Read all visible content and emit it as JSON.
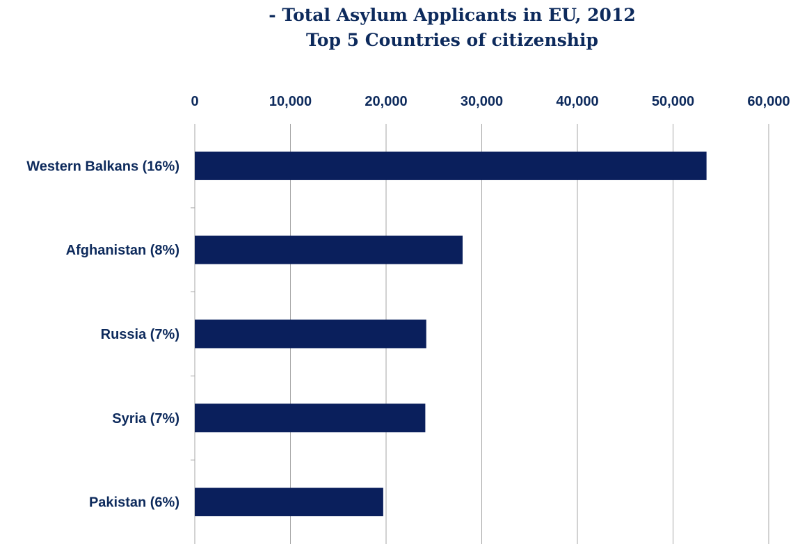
{
  "chart_data": {
    "type": "bar",
    "orientation": "horizontal",
    "title_lines": [
      "- Total Asylum Applicants in EU, 2012",
      "Top 5 Countries of citizenship"
    ],
    "categories": [
      "Western Balkans (16%)",
      "Afghanistan (8%)",
      "Russia (7%)",
      "Syria (7%)",
      "Pakistan (6%)"
    ],
    "values": [
      53500,
      28000,
      24200,
      24100,
      19700
    ],
    "xlim": [
      0,
      60000
    ],
    "xticks": [
      0,
      10000,
      20000,
      30000,
      40000,
      50000,
      60000
    ],
    "xtick_labels": [
      "0",
      "10,000",
      "20,000",
      "30,000",
      "40,000",
      "50,000",
      "60,000"
    ],
    "xaxis_position": "top",
    "grid": "vertical",
    "legend": "none",
    "bar_color": "#0a1f5c",
    "grid_color": "#a6a6a6",
    "text_color": "#0d2a5c"
  }
}
